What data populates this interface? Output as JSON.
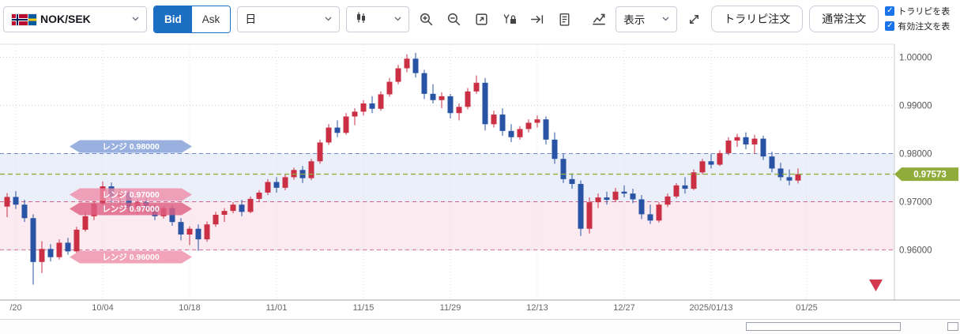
{
  "toolbar": {
    "pair_selector": {
      "label": "NOK/SEK"
    },
    "bid_label": "Bid",
    "ask_label": "Ask",
    "timeframe_value": "日",
    "display_menu_label": "表示",
    "trap_order_button": "トラリピ注文",
    "normal_order_button": "通常注文",
    "checkboxes": [
      {
        "label": "トラリピを表",
        "checked": true
      },
      {
        "label": "有効注文を表",
        "checked": true
      }
    ]
  },
  "chart_data": {
    "type": "candlestick",
    "pair": "NOK/SEK",
    "interval": "日",
    "y_axis": {
      "tick_labels": [
        "1.00000",
        "0.99000",
        "0.98000",
        "0.97000",
        "0.96000"
      ],
      "tick_values": [
        1.0,
        0.99,
        0.98,
        0.97,
        0.96
      ],
      "visible_range": [
        0.9496,
        1.0027
      ]
    },
    "x_axis": {
      "tick_labels": [
        "/20",
        "10/04",
        "10/18",
        "11/01",
        "11/15",
        "11/29",
        "12/13",
        "12/27",
        "2025/01/13",
        "01/25"
      ],
      "tick_indices": [
        1,
        11,
        21,
        31,
        41,
        51,
        61,
        71,
        81,
        92
      ]
    },
    "current_price": {
      "value": 0.97573,
      "label": "0.97573",
      "color": "#90ad3c"
    },
    "colors": {
      "up": "#cb2f44",
      "down": "#2953a4",
      "grid": "#cfcfcf",
      "band_blue_fill": "rgba(100,135,205,0.13)",
      "band_blue_line": "rgba(90,120,200,0.85)",
      "band_pink_fill": "rgba(230,105,140,0.14)",
      "band_pink_line": "rgba(220,90,130,0.85)"
    },
    "bands": [
      {
        "top": 0.98,
        "bottom": 0.97,
        "color": "blue"
      },
      {
        "top": 0.97,
        "bottom": 0.96,
        "color": "pink"
      }
    ],
    "range_labels": [
      {
        "text": "レンジ 0.98000",
        "price": 0.98,
        "side": "above",
        "fill": "rgba(125,155,215,0.78)"
      },
      {
        "text": "レンジ 0.97000",
        "price": 0.97,
        "side": "above",
        "fill": "rgba(238,140,168,0.80)"
      },
      {
        "text": "レンジ 0.97000",
        "price": 0.97,
        "side": "below",
        "fill": "rgba(222,98,132,0.82)"
      },
      {
        "text": "レンジ 0.96000",
        "price": 0.96,
        "side": "below",
        "fill": "rgba(238,140,168,0.80)"
      }
    ],
    "marker": {
      "type": "down-triangle",
      "color": "#d2394e"
    },
    "candles": [
      [
        0.969,
        0.9718,
        0.9668,
        0.971
      ],
      [
        0.971,
        0.9722,
        0.9685,
        0.9694
      ],
      [
        0.9694,
        0.9704,
        0.9658,
        0.9666
      ],
      [
        0.9666,
        0.9674,
        0.9528,
        0.9575
      ],
      [
        0.9575,
        0.9618,
        0.9552,
        0.9602
      ],
      [
        0.9602,
        0.9612,
        0.9576,
        0.9585
      ],
      [
        0.9585,
        0.9622,
        0.958,
        0.9615
      ],
      [
        0.9615,
        0.9625,
        0.959,
        0.9597
      ],
      [
        0.9597,
        0.9648,
        0.9594,
        0.9642
      ],
      [
        0.9642,
        0.9678,
        0.9638,
        0.967
      ],
      [
        0.967,
        0.9702,
        0.9662,
        0.9696
      ],
      [
        0.9696,
        0.9742,
        0.9692,
        0.9732
      ],
      [
        0.9732,
        0.974,
        0.9698,
        0.971
      ],
      [
        0.971,
        0.9726,
        0.9694,
        0.9719
      ],
      [
        0.9719,
        0.9724,
        0.9678,
        0.9688
      ],
      [
        0.9688,
        0.9706,
        0.9674,
        0.9699
      ],
      [
        0.9699,
        0.9709,
        0.9678,
        0.9686
      ],
      [
        0.9686,
        0.9694,
        0.9662,
        0.967
      ],
      [
        0.967,
        0.9691,
        0.9665,
        0.9687
      ],
      [
        0.9687,
        0.9693,
        0.965,
        0.9658
      ],
      [
        0.9658,
        0.9666,
        0.962,
        0.9632
      ],
      [
        0.9632,
        0.9649,
        0.961,
        0.9644
      ],
      [
        0.9644,
        0.9653,
        0.9598,
        0.9622
      ],
      [
        0.9622,
        0.9659,
        0.9617,
        0.9653
      ],
      [
        0.9653,
        0.9679,
        0.9648,
        0.9673
      ],
      [
        0.9673,
        0.9687,
        0.9658,
        0.9681
      ],
      [
        0.9681,
        0.9699,
        0.9676,
        0.9694
      ],
      [
        0.9694,
        0.9704,
        0.967,
        0.9679
      ],
      [
        0.9679,
        0.9711,
        0.9676,
        0.9706
      ],
      [
        0.9706,
        0.9724,
        0.9699,
        0.9719
      ],
      [
        0.9719,
        0.9747,
        0.9714,
        0.9741
      ],
      [
        0.9741,
        0.9751,
        0.9719,
        0.9729
      ],
      [
        0.9729,
        0.9757,
        0.9724,
        0.9751
      ],
      [
        0.9751,
        0.9771,
        0.9746,
        0.9766
      ],
      [
        0.9766,
        0.9774,
        0.9739,
        0.9749
      ],
      [
        0.9749,
        0.9789,
        0.9745,
        0.9784
      ],
      [
        0.9784,
        0.9829,
        0.9779,
        0.9823
      ],
      [
        0.9823,
        0.9861,
        0.9818,
        0.9854
      ],
      [
        0.9854,
        0.9869,
        0.9834,
        0.9843
      ],
      [
        0.9843,
        0.9884,
        0.9839,
        0.9877
      ],
      [
        0.9877,
        0.9894,
        0.9859,
        0.9887
      ],
      [
        0.9887,
        0.9911,
        0.9879,
        0.9904
      ],
      [
        0.9904,
        0.9919,
        0.9884,
        0.9893
      ],
      [
        0.9893,
        0.9929,
        0.9889,
        0.9923
      ],
      [
        0.9923,
        0.9957,
        0.9918,
        0.9949
      ],
      [
        0.9949,
        0.9984,
        0.9944,
        0.9977
      ],
      [
        0.9977,
        1.0006,
        0.9969,
        0.9997
      ],
      [
        0.9997,
        1.0009,
        0.9958,
        0.9967
      ],
      [
        0.9967,
        0.9974,
        0.9913,
        0.9924
      ],
      [
        0.9924,
        0.9944,
        0.9904,
        0.9911
      ],
      [
        0.9911,
        0.9927,
        0.9894,
        0.9919
      ],
      [
        0.9919,
        0.9924,
        0.9873,
        0.9884
      ],
      [
        0.9884,
        0.9904,
        0.9869,
        0.9897
      ],
      [
        0.9897,
        0.9936,
        0.9892,
        0.9929
      ],
      [
        0.9929,
        0.9962,
        0.9924,
        0.9947
      ],
      [
        0.9947,
        0.9957,
        0.9848,
        0.9861
      ],
      [
        0.9861,
        0.9889,
        0.9854,
        0.9881
      ],
      [
        0.9881,
        0.9894,
        0.9837,
        0.9847
      ],
      [
        0.9847,
        0.9861,
        0.9824,
        0.9834
      ],
      [
        0.9834,
        0.9857,
        0.9829,
        0.9851
      ],
      [
        0.9851,
        0.9871,
        0.9844,
        0.9864
      ],
      [
        0.9864,
        0.9879,
        0.9854,
        0.9871
      ],
      [
        0.9871,
        0.9877,
        0.9819,
        0.9829
      ],
      [
        0.9829,
        0.9844,
        0.9779,
        0.9789
      ],
      [
        0.9789,
        0.9799,
        0.9739,
        0.9747
      ],
      [
        0.9747,
        0.9759,
        0.9727,
        0.9737
      ],
      [
        0.9737,
        0.9744,
        0.9629,
        0.9644
      ],
      [
        0.9644,
        0.9709,
        0.9634,
        0.9699
      ],
      [
        0.9699,
        0.9717,
        0.9687,
        0.9709
      ],
      [
        0.9709,
        0.9721,
        0.9694,
        0.9704
      ],
      [
        0.9704,
        0.9729,
        0.9699,
        0.9721
      ],
      [
        0.9721,
        0.9734,
        0.9709,
        0.9717
      ],
      [
        0.9717,
        0.9727,
        0.9697,
        0.9705
      ],
      [
        0.9705,
        0.9714,
        0.9664,
        0.9674
      ],
      [
        0.9674,
        0.9694,
        0.9654,
        0.9661
      ],
      [
        0.9661,
        0.9699,
        0.9657,
        0.9694
      ],
      [
        0.9694,
        0.9717,
        0.9689,
        0.9711
      ],
      [
        0.9711,
        0.9739,
        0.9707,
        0.9734
      ],
      [
        0.9734,
        0.9751,
        0.9717,
        0.9727
      ],
      [
        0.9727,
        0.9767,
        0.9724,
        0.9761
      ],
      [
        0.9761,
        0.9789,
        0.9757,
        0.9784
      ],
      [
        0.9784,
        0.9799,
        0.9769,
        0.9777
      ],
      [
        0.9777,
        0.9807,
        0.9774,
        0.9801
      ],
      [
        0.9801,
        0.9834,
        0.9797,
        0.9827
      ],
      [
        0.9827,
        0.9841,
        0.9814,
        0.9834
      ],
      [
        0.9834,
        0.9844,
        0.9809,
        0.9819
      ],
      [
        0.9819,
        0.9839,
        0.9799,
        0.9831
      ],
      [
        0.9831,
        0.9837,
        0.9787,
        0.9794
      ],
      [
        0.9794,
        0.9804,
        0.9761,
        0.9769
      ],
      [
        0.9769,
        0.9781,
        0.9744,
        0.9751
      ],
      [
        0.9751,
        0.9767,
        0.9734,
        0.9744
      ],
      [
        0.9744,
        0.9769,
        0.9738,
        0.97573
      ]
    ]
  }
}
